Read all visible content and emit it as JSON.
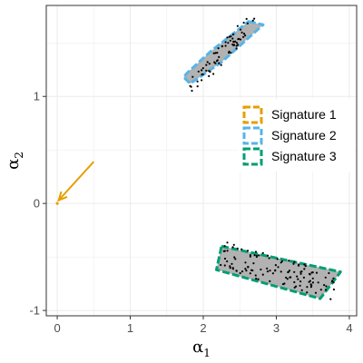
{
  "chart_data": {
    "type": "scatter",
    "xlabel": "α",
    "xlabel_sub": "1",
    "ylabel": "α",
    "ylabel_sub": "2",
    "xlim": [
      -0.15,
      4.1
    ],
    "ylim": [
      -1.05,
      1.85
    ],
    "x_ticks": [
      0,
      1,
      2,
      3,
      4
    ],
    "y_ticks": [
      -1,
      0,
      1
    ],
    "x_tick_labels": [
      "0",
      "1",
      "2",
      "3",
      "4"
    ],
    "y_tick_labels": [
      "-1",
      "0",
      "1"
    ],
    "grid": true,
    "legend_position": "right",
    "legend": [
      {
        "label": "Signature 1",
        "color": "#E69F00"
      },
      {
        "label": "Signature 2",
        "color": "#56B4E9"
      },
      {
        "label": "Signature 3",
        "color": "#009E73"
      }
    ],
    "regions": [
      {
        "name": "Signature 2",
        "color": "#56B4E9",
        "fill": "#b2b2b2",
        "polygon": [
          [
            2.62,
            1.7
          ],
          [
            2.82,
            1.67
          ],
          [
            2.25,
            1.32
          ],
          [
            1.82,
            1.12
          ],
          [
            1.73,
            1.18
          ],
          [
            1.78,
            1.22
          ],
          [
            2.1,
            1.42
          ]
        ]
      },
      {
        "name": "Signature 3",
        "color": "#009E73",
        "fill": "#b2b2b2",
        "polygon": [
          [
            2.25,
            -0.4
          ],
          [
            3.88,
            -0.64
          ],
          [
            3.6,
            -0.89
          ],
          [
            2.18,
            -0.62
          ]
        ]
      }
    ],
    "arrow": {
      "color": "#E69F00",
      "from": [
        0.5,
        0.39
      ],
      "to": [
        0.02,
        0.03
      ]
    },
    "origin_point": {
      "x": 0.0,
      "y": 0.0,
      "color": "#E69F00"
    },
    "point_clusters": [
      {
        "name": "cluster-upper",
        "center": [
          2.26,
          1.4
        ],
        "direction": [
          0.8,
          0.6
        ],
        "half_length": 0.55,
        "half_width": 0.08,
        "count": 70
      },
      {
        "name": "cluster-lower",
        "center": [
          3.02,
          -0.63
        ],
        "direction": [
          0.98,
          -0.19
        ],
        "half_length": 0.8,
        "half_width": 0.13,
        "count": 120
      }
    ]
  }
}
